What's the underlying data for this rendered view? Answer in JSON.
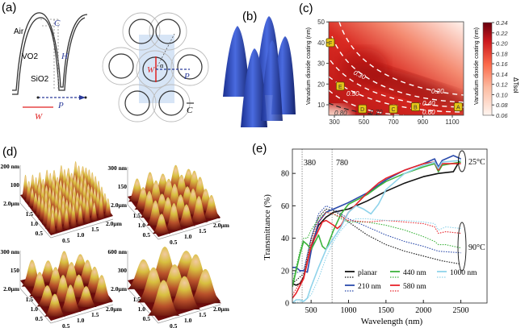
{
  "panels": {
    "a": {
      "label": "(a)",
      "layers": [
        "Air",
        "VO2",
        "SiO2"
      ],
      "dims": {
        "C": "C",
        "H": "H",
        "P": "P",
        "W": "W",
        "alpha": "α"
      }
    },
    "b": {
      "label": "(b)"
    },
    "c": {
      "label": "(c)"
    },
    "d": {
      "label": "(d)",
      "subplots": [
        {
          "zmax": "200 nm",
          "zmid": "100",
          "ymax": "2.0μm",
          "yticks": [
            "1.5",
            "1.0",
            "0.5"
          ],
          "xticks": [
            "0.5",
            "1.0",
            "1.5",
            "2.0μm"
          ]
        },
        {
          "zmax": "300 nm",
          "zmid": "150",
          "ymax": "2.0μm",
          "yticks": [
            "1.5",
            "1.0",
            "0.5"
          ],
          "xticks": [
            "0.5",
            "1.0",
            "1.5",
            "2.0μm"
          ]
        },
        {
          "zmax": "300 nm",
          "zmid": "150",
          "ymax": "2.0μm",
          "yticks": [
            "1.5",
            "1.0",
            "0.5"
          ],
          "xticks": [
            "0.5",
            "1.0",
            "1.5",
            "2.0μm"
          ]
        },
        {
          "zmax": "600 nm",
          "zmid": "300",
          "ymax": "2.0μm",
          "yticks": [
            "1.5",
            "1.0",
            "0.5"
          ],
          "xticks": [
            "0.5",
            "1.0",
            "1.5",
            "2.0μm"
          ]
        }
      ]
    },
    "e": {
      "label": "(e)"
    }
  },
  "chart_data": [
    {
      "panel": "c",
      "type": "heatmap",
      "xlabel": "",
      "ylabel": "Vanadium dioxide coating (nm)",
      "xlim": [
        260,
        1180
      ],
      "ylim": [
        5,
        50
      ],
      "xticks": [
        "300",
        "500",
        "700",
        "900",
        "1100"
      ],
      "yticks": [
        "10",
        "20",
        "30",
        "40",
        "50"
      ],
      "contour_labels": [
        "0.30",
        "0.20",
        "0.50",
        "0.40",
        "0.60",
        "0.70",
        "0.80"
      ],
      "markers": [
        {
          "label": "A",
          "x": 1140,
          "y": 9
        },
        {
          "label": "B",
          "x": 850,
          "y": 9
        },
        {
          "label": "C",
          "x": 700,
          "y": 8
        },
        {
          "label": "D",
          "x": 490,
          "y": 8
        },
        {
          "label": "E",
          "x": 340,
          "y": 19
        },
        {
          "label": "F",
          "x": 270,
          "y": 40
        }
      ],
      "colorbar": {
        "label": "ΔTsol",
        "axis_label": "Vanadium dioxide coating (nm)",
        "ticks": [
          "0.24",
          "0.22",
          "0.20",
          "0.18",
          "0.16",
          "0.14",
          "0.12",
          "0.10",
          "0.08",
          "0.06"
        ],
        "range": [
          0.06,
          0.24
        ],
        "colors": [
          "#fff5f0",
          "#fcbba1",
          "#fb6a4a",
          "#cb181d",
          "#67000d"
        ]
      }
    },
    {
      "panel": "e",
      "type": "line",
      "xlabel": "Wavelength (nm)",
      "ylabel": "Transmittance (%)",
      "xlim": [
        250,
        2850
      ],
      "ylim": [
        0,
        95
      ],
      "xticks": [
        "500",
        "1000",
        "1500",
        "2000",
        "2500"
      ],
      "yticks": [
        "0",
        "20",
        "40",
        "60",
        "80"
      ],
      "grid": false,
      "legend": "bottom-center",
      "vlines": [
        {
          "x": 380,
          "label": "380"
        },
        {
          "x": 780,
          "label": "780"
        }
      ],
      "annotations": [
        "25°C",
        "90°C"
      ],
      "series": [
        {
          "name": "planar",
          "color": "#111111",
          "style": "solid",
          "points": [
            [
              250,
              12
            ],
            [
              300,
              11
            ],
            [
              350,
              12
            ],
            [
              400,
              16
            ],
            [
              500,
              35
            ],
            [
              600,
              48
            ],
            [
              700,
              53
            ],
            [
              800,
              56
            ],
            [
              900,
              57
            ],
            [
              1000,
              58
            ],
            [
              1250,
              63
            ],
            [
              1500,
              69
            ],
            [
              1750,
              74
            ],
            [
              2000,
              78
            ],
            [
              2200,
              80
            ],
            [
              2400,
              81
            ],
            [
              2450,
              85
            ],
            [
              2480,
              88
            ]
          ]
        },
        {
          "name": "planar",
          "color": "#111111",
          "style": "dotted",
          "points": [
            [
              250,
              12
            ],
            [
              300,
              14
            ],
            [
              400,
              18
            ],
            [
              500,
              40
            ],
            [
              600,
              53
            ],
            [
              700,
              58
            ],
            [
              800,
              57
            ],
            [
              900,
              54
            ],
            [
              1000,
              50
            ],
            [
              1250,
              42
            ],
            [
              1500,
              36
            ],
            [
              1750,
              32
            ],
            [
              2000,
              29
            ],
            [
              2250,
              26
            ],
            [
              2500,
              24
            ]
          ]
        },
        {
          "name": "210 nm",
          "color": "#2b4bab",
          "style": "solid",
          "points": [
            [
              250,
              22
            ],
            [
              300,
              22
            ],
            [
              350,
              20
            ],
            [
              400,
              20
            ],
            [
              450,
              19
            ],
            [
              500,
              32
            ],
            [
              600,
              50
            ],
            [
              700,
              56
            ],
            [
              800,
              58
            ],
            [
              900,
              60
            ],
            [
              1000,
              62
            ],
            [
              1250,
              68
            ],
            [
              1500,
              76
            ],
            [
              1750,
              82
            ],
            [
              2000,
              86
            ],
            [
              2150,
              89
            ],
            [
              2200,
              84
            ],
            [
              2250,
              88
            ],
            [
              2400,
              91
            ],
            [
              2500,
              89
            ]
          ]
        },
        {
          "name": "210 nm",
          "color": "#2b4bab",
          "style": "dotted",
          "points": [
            [
              250,
              18
            ],
            [
              400,
              20
            ],
            [
              500,
              40
            ],
            [
              600,
              55
            ],
            [
              700,
              60
            ],
            [
              800,
              58
            ],
            [
              900,
              55
            ],
            [
              1000,
              52
            ],
            [
              1250,
              47
            ],
            [
              1500,
              42
            ],
            [
              1750,
              38
            ],
            [
              2000,
              35
            ],
            [
              2200,
              32
            ],
            [
              2500,
              31
            ]
          ]
        },
        {
          "name": "440 nm",
          "color": "#3cb33c",
          "style": "solid",
          "points": [
            [
              250,
              10
            ],
            [
              350,
              30
            ],
            [
              400,
              38
            ],
            [
              450,
              36
            ],
            [
              500,
              33
            ],
            [
              600,
              42
            ],
            [
              650,
              35
            ],
            [
              700,
              33
            ],
            [
              800,
              45
            ],
            [
              900,
              55
            ],
            [
              1000,
              61
            ],
            [
              1250,
              67
            ],
            [
              1400,
              72
            ],
            [
              1500,
              75
            ],
            [
              1750,
              80
            ],
            [
              2000,
              84
            ],
            [
              2150,
              86
            ],
            [
              2200,
              81
            ],
            [
              2250,
              85
            ],
            [
              2500,
              87
            ]
          ]
        },
        {
          "name": "440 nm",
          "color": "#3cb33c",
          "style": "dotted",
          "points": [
            [
              250,
              12
            ],
            [
              350,
              32
            ],
            [
              400,
              40
            ],
            [
              450,
              40
            ],
            [
              500,
              45
            ],
            [
              600,
              52
            ],
            [
              700,
              56
            ],
            [
              800,
              55
            ],
            [
              900,
              52
            ],
            [
              1000,
              50
            ],
            [
              1250,
              50
            ],
            [
              1500,
              48
            ],
            [
              1750,
              45
            ],
            [
              2000,
              41
            ],
            [
              2150,
              38
            ],
            [
              2200,
              36
            ],
            [
              2300,
              36
            ],
            [
              2500,
              34
            ]
          ]
        },
        {
          "name": "580 nm",
          "color": "#e8232a",
          "style": "solid",
          "points": [
            [
              250,
              3
            ],
            [
              300,
              6
            ],
            [
              400,
              15
            ],
            [
              500,
              35
            ],
            [
              600,
              45
            ],
            [
              650,
              50
            ],
            [
              700,
              51
            ],
            [
              800,
              48
            ],
            [
              850,
              46
            ],
            [
              900,
              48
            ],
            [
              1000,
              56
            ],
            [
              1250,
              68
            ],
            [
              1400,
              74
            ],
            [
              1500,
              77
            ],
            [
              1750,
              82
            ],
            [
              2000,
              86
            ],
            [
              2150,
              87
            ],
            [
              2200,
              82
            ],
            [
              2250,
              86
            ],
            [
              2500,
              86
            ]
          ]
        },
        {
          "name": "580 nm",
          "color": "#e8232a",
          "style": "dotted",
          "points": [
            [
              250,
              5
            ],
            [
              400,
              16
            ],
            [
              500,
              38
            ],
            [
              600,
              50
            ],
            [
              700,
              56
            ],
            [
              800,
              55
            ],
            [
              900,
              53
            ],
            [
              1000,
              51
            ],
            [
              1250,
              50
            ],
            [
              1500,
              51
            ],
            [
              1750,
              50
            ],
            [
              2000,
              49
            ],
            [
              2150,
              47
            ],
            [
              2200,
              43
            ],
            [
              2300,
              44
            ],
            [
              2500,
              43
            ]
          ]
        },
        {
          "name": "1000 nm",
          "color": "#8fd3ea",
          "style": "solid",
          "points": [
            [
              250,
              0
            ],
            [
              300,
              2
            ],
            [
              350,
              2
            ],
            [
              400,
              1
            ],
            [
              450,
              3
            ],
            [
              500,
              10
            ],
            [
              600,
              22
            ],
            [
              700,
              33
            ],
            [
              800,
              40
            ],
            [
              900,
              47
            ],
            [
              1000,
              56
            ],
            [
              1100,
              60
            ],
            [
              1200,
              58
            ],
            [
              1300,
              55
            ],
            [
              1400,
              61
            ],
            [
              1500,
              70
            ],
            [
              1750,
              80
            ],
            [
              2000,
              85
            ],
            [
              2150,
              87
            ],
            [
              2200,
              83
            ],
            [
              2250,
              87
            ],
            [
              2500,
              88
            ]
          ]
        },
        {
          "name": "1000 nm",
          "color": "#8fd3ea",
          "style": "dotted",
          "points": [
            [
              250,
              0
            ],
            [
              400,
              1
            ],
            [
              500,
              5
            ],
            [
              600,
              15
            ],
            [
              700,
              28
            ],
            [
              800,
              38
            ],
            [
              900,
              45
            ],
            [
              1000,
              50
            ],
            [
              1100,
              52
            ],
            [
              1250,
              52
            ],
            [
              1500,
              51
            ],
            [
              1750,
              51
            ],
            [
              2000,
              50
            ],
            [
              2150,
              49
            ],
            [
              2200,
              45
            ],
            [
              2300,
              47
            ],
            [
              2500,
              46
            ]
          ]
        }
      ],
      "legend_entries": [
        "planar",
        "210 nm",
        "440 nm",
        "580 nm",
        "1000 nm"
      ]
    }
  ]
}
